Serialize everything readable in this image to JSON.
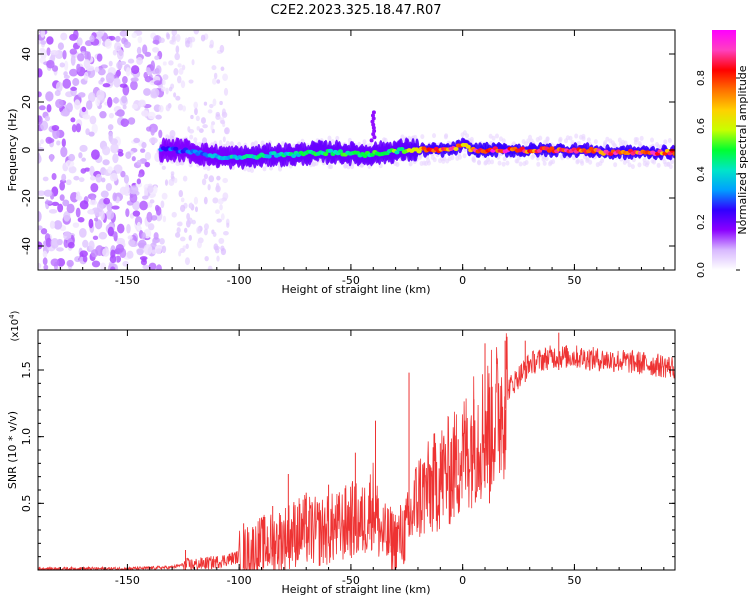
{
  "title": "C2E2.2023.325.18.47.R07",
  "chart_data": [
    {
      "type": "heatmap",
      "xlabel": "Height of straight line (km)",
      "ylabel": "Frequency (Hz)",
      "xlim": [
        -190,
        95
      ],
      "ylim": [
        -50,
        50
      ],
      "xticks": [
        -150,
        -100,
        -50,
        0,
        50
      ],
      "yticks": [
        -40,
        -20,
        0,
        20,
        40
      ],
      "ytick_labels": [
        "-40",
        "-20",
        "0",
        "20",
        "40"
      ],
      "colorbar": {
        "label": "Normalized spectral amplitude",
        "range": [
          0,
          1
        ],
        "ticks": [
          0.0,
          0.2,
          0.4,
          0.6,
          0.8
        ],
        "tick_labels": [
          "0.0",
          "0.2",
          "0.4",
          "0.6",
          "0.8"
        ],
        "colormap": [
          "#ffffff",
          "#d8b8ff",
          "#8b00ff",
          "#3000ff",
          "#00a0ff",
          "#00e6c8",
          "#00ff30",
          "#c8ff00",
          "#ffd000",
          "#ff7000",
          "#ff0000",
          "#ff40c0",
          "#ff00ff"
        ]
      },
      "ridge": {
        "x": [
          -135,
          -125,
          -115,
          -105,
          -95,
          -85,
          -75,
          -65,
          -55,
          -45,
          -35,
          -25,
          -15,
          -5,
          0,
          5,
          15,
          25,
          35,
          45,
          55,
          65,
          75,
          85,
          95
        ],
        "frequency": [
          0,
          0,
          -2,
          -3,
          -3,
          -2,
          -2,
          -1,
          -1,
          -2,
          -1,
          0,
          0,
          0,
          2,
          0,
          0,
          0,
          0,
          0,
          0,
          -1,
          -1,
          -1,
          -1
        ],
        "peak_amplitude": [
          0.3,
          0.3,
          0.35,
          0.4,
          0.45,
          0.45,
          0.45,
          0.5,
          0.5,
          0.5,
          0.5,
          0.55,
          0.8,
          0.85,
          0.7,
          0.9,
          0.9,
          0.85,
          0.85,
          0.85,
          0.8,
          0.85,
          0.85,
          0.85,
          0.8
        ]
      },
      "noise_region_x": [
        -190,
        -135
      ]
    },
    {
      "type": "line",
      "xlabel": "Height of straight line (km)",
      "ylabel": "SNR (10 * v/v)",
      "y_multiplier": "(x10",
      "y_multiplier_exp": "4",
      "y_multiplier_close": ")",
      "xlim": [
        -190,
        95
      ],
      "ylim": [
        0,
        1.8
      ],
      "xticks": [
        -150,
        -100,
        -50,
        0,
        50
      ],
      "yticks": [
        0.5,
        1.0,
        1.5
      ],
      "ytick_labels": [
        "0.5",
        "1.0",
        "1.5"
      ],
      "color": "#ee3333",
      "series": [
        {
          "x": [
            -190,
            -150,
            -130,
            -125,
            -120,
            -110,
            -100,
            -95,
            -90,
            -85,
            -80,
            -75,
            -70,
            -65,
            -60,
            -55,
            -50,
            -45,
            -40,
            -37,
            -35,
            -30,
            -25,
            -22,
            -20,
            -15,
            -10,
            -5,
            0,
            5,
            10,
            15,
            20,
            25,
            30,
            40,
            50,
            60,
            70,
            80,
            95
          ],
          "y": [
            0.01,
            0.01,
            0.02,
            0.04,
            0.04,
            0.06,
            0.1,
            0.14,
            0.18,
            0.2,
            0.24,
            0.28,
            0.3,
            0.28,
            0.3,
            0.32,
            0.38,
            0.35,
            0.5,
            0.3,
            0.25,
            0.22,
            0.3,
            0.45,
            0.55,
            0.6,
            0.7,
            0.75,
            0.85,
            1.0,
            1.05,
            1.15,
            1.35,
            1.45,
            1.55,
            1.6,
            1.6,
            1.58,
            1.57,
            1.55,
            1.52
          ]
        }
      ],
      "spikes": [
        {
          "x": -124,
          "y": 0.15
        },
        {
          "x": -98,
          "y": 0.35
        },
        {
          "x": -85,
          "y": 0.48
        },
        {
          "x": -78,
          "y": 0.72
        },
        {
          "x": -70,
          "y": 0.58
        },
        {
          "x": -60,
          "y": 0.64
        },
        {
          "x": -48,
          "y": 0.88
        },
        {
          "x": -39,
          "y": 1.12
        },
        {
          "x": -32,
          "y": 0.4
        },
        {
          "x": -24,
          "y": 1.48
        },
        {
          "x": -10,
          "y": 0.95
        },
        {
          "x": -2,
          "y": 0.98
        },
        {
          "x": 5,
          "y": 1.28
        },
        {
          "x": 10,
          "y": 1.7
        },
        {
          "x": 12,
          "y": 0.5
        },
        {
          "x": 19,
          "y": 1.72
        },
        {
          "x": 28,
          "y": 1.72
        },
        {
          "x": 43,
          "y": 1.78
        }
      ]
    }
  ]
}
